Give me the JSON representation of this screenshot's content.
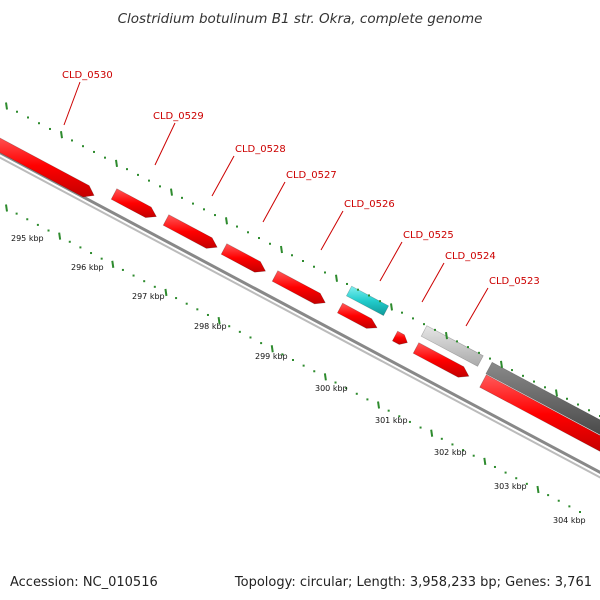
{
  "title": "Clostridium botulinum B1 str. Okra, complete genome",
  "footer": {
    "accession": "Accession: NC_010516",
    "topology": "Topology: circular; Length: 3,958,233 bp; Genes: 3,761"
  },
  "gene_labels": [
    "CLD_0530",
    "CLD_0529",
    "CLD_0528",
    "CLD_0527",
    "CLD_0526",
    "CLD_0525",
    "CLD_0524",
    "CLD_0523"
  ],
  "kbp_labels": [
    "295 kbp",
    "296 kbp",
    "297 kbp",
    "298 kbp",
    "299 kbp",
    "300 kbp",
    "301 kbp",
    "302 kbp",
    "303 kbp",
    "304 kbp"
  ],
  "colors": {
    "cds": "#ff0000",
    "rna": "#33cccc",
    "gc_light": "#c8c8c8",
    "gc_dark": "#666666",
    "backbone": "#888888",
    "tick_dots": "#2e8b2e",
    "label_line": "#cc0000"
  }
}
